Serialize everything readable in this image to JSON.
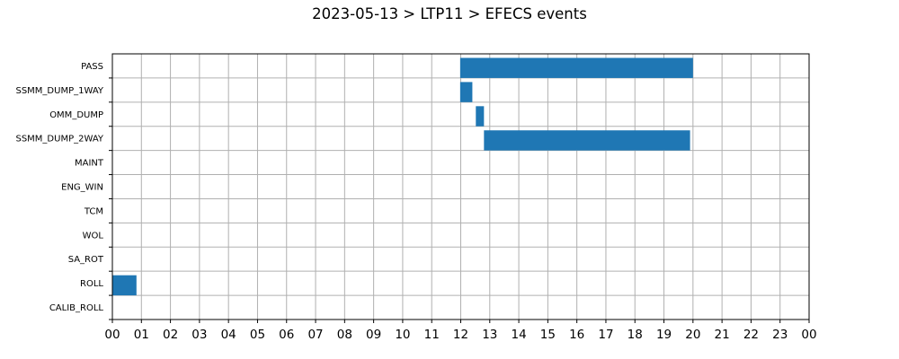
{
  "chart_data": {
    "type": "gantt",
    "title": "2023-05-13 > LTP11 > EFECS events",
    "xlabel": "",
    "ylabel": "",
    "x_unit": "hour",
    "xlim": [
      0,
      24
    ],
    "x_tick_labels": [
      "00",
      "01",
      "02",
      "03",
      "04",
      "05",
      "06",
      "07",
      "08",
      "09",
      "10",
      "11",
      "12",
      "13",
      "14",
      "15",
      "16",
      "17",
      "18",
      "19",
      "20",
      "21",
      "22",
      "23",
      "00"
    ],
    "grid": true,
    "categories": [
      "PASS",
      "SSMM_DUMP_1WAY",
      "OMM_DUMP",
      "SSMM_DUMP_2WAY",
      "MAINT",
      "ENG_WIN",
      "TCM",
      "WOL",
      "SA_ROT",
      "ROLL",
      "CALIB_ROLL"
    ],
    "bar_color": "#1f77b4",
    "series": [
      {
        "category": "PASS",
        "start": 11.98,
        "end": 20.0
      },
      {
        "category": "SSMM_DUMP_1WAY",
        "start": 11.98,
        "end": 12.4
      },
      {
        "category": "OMM_DUMP",
        "start": 12.52,
        "end": 12.8
      },
      {
        "category": "SSMM_DUMP_2WAY",
        "start": 12.8,
        "end": 19.9
      },
      {
        "category": "ROLL",
        "start": 0.0,
        "end": 0.83
      }
    ]
  }
}
